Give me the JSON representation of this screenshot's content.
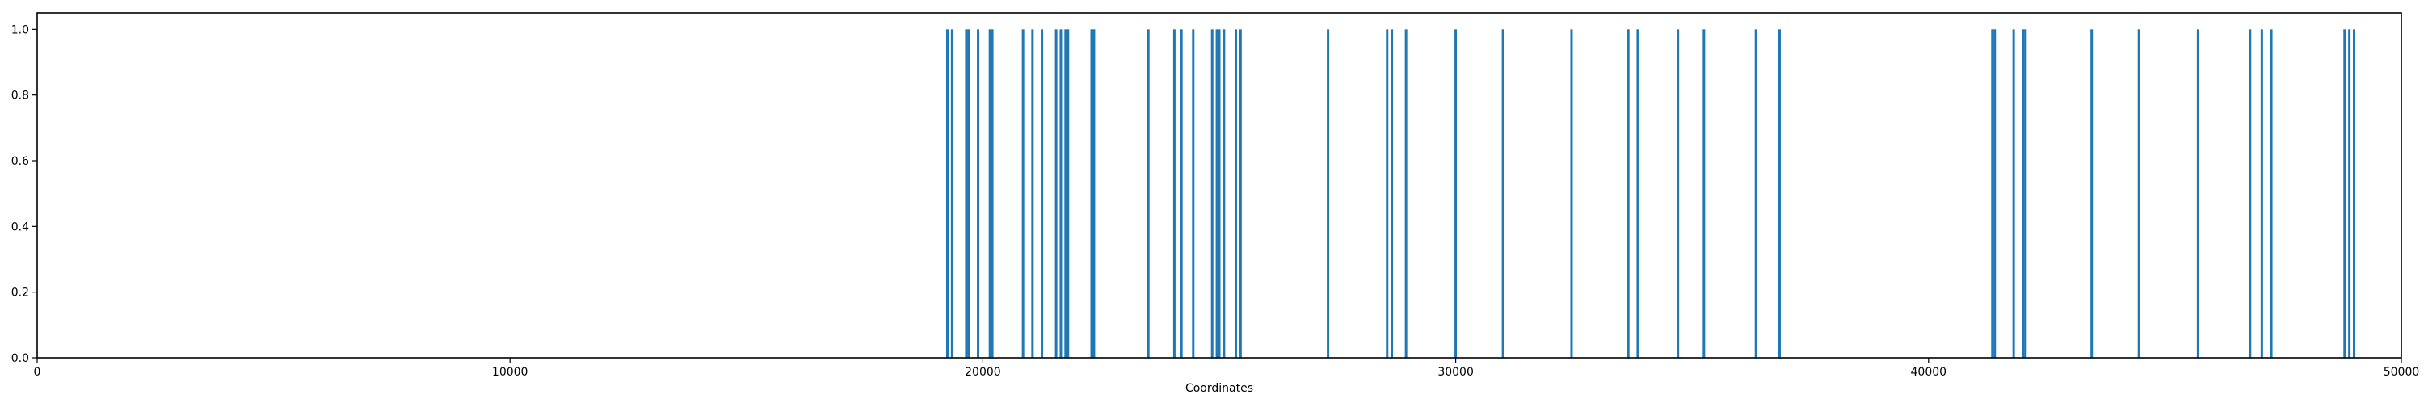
{
  "chart_data": {
    "type": "bar",
    "title": "",
    "xlabel": "Coordinates",
    "ylabel": "",
    "xlim": [
      0,
      50000
    ],
    "ylim": [
      0.0,
      1.05
    ],
    "xticks": [
      0,
      10000,
      20000,
      30000,
      40000,
      50000
    ],
    "xtick_labels": [
      "0",
      "10000",
      "20000",
      "30000",
      "40000",
      "50000"
    ],
    "yticks": [
      0.0,
      0.2,
      0.4,
      0.6,
      0.8,
      1.0
    ],
    "ytick_labels": [
      "0.0",
      "0.2",
      "0.4",
      "0.6",
      "0.8",
      "1.0"
    ],
    "grid": false,
    "legend": "none",
    "color": "#1f77b4",
    "x": [
      19250,
      19350,
      19650,
      19700,
      19900,
      20150,
      20200,
      20850,
      21050,
      21250,
      21550,
      21650,
      21750,
      21800,
      22300,
      22350,
      23500,
      24050,
      24200,
      24450,
      24850,
      24950,
      25000,
      25100,
      25350,
      25450,
      27300,
      28550,
      28650,
      28950,
      30000,
      31000,
      32450,
      33650,
      33850,
      34700,
      35250,
      36350,
      36850,
      41350,
      41400,
      41800,
      42000,
      42050,
      43450,
      44450,
      45700,
      46800,
      47050,
      47250,
      48800,
      48900,
      49000
    ],
    "values": [
      1,
      1,
      1,
      1,
      1,
      1,
      1,
      1,
      1,
      1,
      1,
      1,
      1,
      1,
      1,
      1,
      1,
      1,
      1,
      1,
      1,
      1,
      1,
      1,
      1,
      1,
      1,
      1,
      1,
      1,
      1,
      1,
      1,
      1,
      1,
      1,
      1,
      1,
      1,
      1,
      1,
      1,
      1,
      1,
      1,
      1,
      1,
      1,
      1,
      1,
      1,
      1,
      1
    ]
  }
}
